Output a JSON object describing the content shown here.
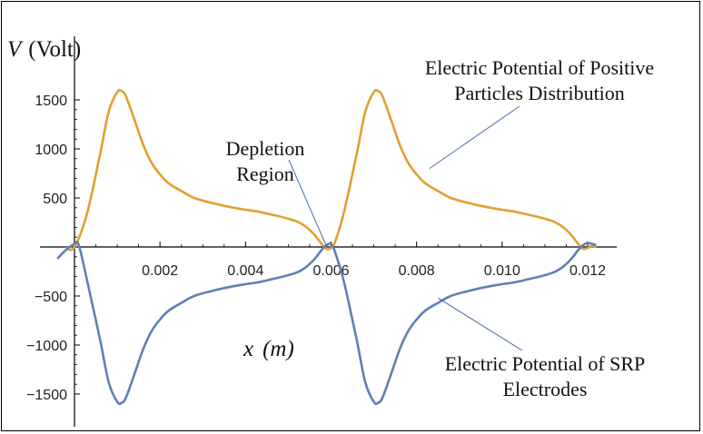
{
  "chart_data": {
    "type": "line",
    "ylabel_symbol": "V",
    "ylabel_unit": "(Volt)",
    "xlabel_symbol": "x",
    "xlabel_unit": "(m)",
    "xlim": [
      -0.0004,
      0.0125
    ],
    "ylim": [
      -1750,
      1750
    ],
    "xticks": [
      {
        "value": 0.002,
        "label": "0.002"
      },
      {
        "value": 0.004,
        "label": "0.004"
      },
      {
        "value": 0.006,
        "label": "0.006"
      },
      {
        "value": 0.008,
        "label": "0.008"
      },
      {
        "value": 0.01,
        "label": "0.010"
      },
      {
        "value": 0.012,
        "label": "0.012"
      }
    ],
    "yticks": [
      {
        "value": 1500,
        "label": "1500"
      },
      {
        "value": 1000,
        "label": "1000"
      },
      {
        "value": 500,
        "label": "500"
      },
      {
        "value": -500,
        "label": "−500"
      },
      {
        "value": -1000,
        "label": "−1000"
      },
      {
        "value": -1500,
        "label": "−1500"
      }
    ],
    "grid": false,
    "series": [
      {
        "id": "positive",
        "color": "#E0A030",
        "points": [
          [
            -0.0002,
            -10
          ],
          [
            0,
            0
          ],
          [
            0.0003,
            350
          ],
          [
            0.0006,
            950
          ],
          [
            0.0008,
            1380
          ],
          [
            0.001,
            1580
          ],
          [
            0.0011,
            1590
          ],
          [
            0.0012,
            1540
          ],
          [
            0.0014,
            1300
          ],
          [
            0.0016,
            1050
          ],
          [
            0.0018,
            860
          ],
          [
            0.002,
            740
          ],
          [
            0.0022,
            650
          ],
          [
            0.0025,
            570
          ],
          [
            0.0028,
            500
          ],
          [
            0.0032,
            450
          ],
          [
            0.0036,
            410
          ],
          [
            0.004,
            380
          ],
          [
            0.0043,
            360
          ],
          [
            0.0046,
            330
          ],
          [
            0.0049,
            300
          ],
          [
            0.0052,
            260
          ],
          [
            0.0054,
            210
          ],
          [
            0.0056,
            130
          ],
          [
            0.0058,
            20
          ],
          [
            0.0059,
            -20
          ],
          [
            0.006,
            -10
          ],
          [
            0.0061,
            60
          ],
          [
            0.0063,
            350
          ],
          [
            0.0066,
            950
          ],
          [
            0.0068,
            1380
          ],
          [
            0.007,
            1580
          ],
          [
            0.0071,
            1590
          ],
          [
            0.0072,
            1540
          ],
          [
            0.0074,
            1300
          ],
          [
            0.0076,
            1050
          ],
          [
            0.0078,
            860
          ],
          [
            0.008,
            740
          ],
          [
            0.0082,
            650
          ],
          [
            0.0085,
            570
          ],
          [
            0.0088,
            500
          ],
          [
            0.0092,
            450
          ],
          [
            0.0096,
            410
          ],
          [
            0.01,
            380
          ],
          [
            0.0103,
            360
          ],
          [
            0.0106,
            330
          ],
          [
            0.0109,
            300
          ],
          [
            0.0112,
            260
          ],
          [
            0.0114,
            210
          ],
          [
            0.0116,
            130
          ],
          [
            0.0118,
            20
          ],
          [
            0.0119,
            -20
          ],
          [
            0.012,
            -10
          ],
          [
            0.0121,
            10
          ],
          [
            0.0122,
            0
          ]
        ]
      },
      {
        "id": "srp",
        "color": "#5E81B5",
        "points": [
          [
            -0.0004,
            -120
          ],
          [
            -0.0002,
            -30
          ],
          [
            0,
            30
          ],
          [
            0.0001,
            20
          ],
          [
            0.0003,
            -350
          ],
          [
            0.0006,
            -950
          ],
          [
            0.0008,
            -1380
          ],
          [
            0.001,
            -1580
          ],
          [
            0.0011,
            -1590
          ],
          [
            0.0012,
            -1540
          ],
          [
            0.0014,
            -1300
          ],
          [
            0.0016,
            -1050
          ],
          [
            0.0018,
            -860
          ],
          [
            0.002,
            -740
          ],
          [
            0.0022,
            -650
          ],
          [
            0.0025,
            -570
          ],
          [
            0.0028,
            -500
          ],
          [
            0.0032,
            -450
          ],
          [
            0.0036,
            -410
          ],
          [
            0.004,
            -380
          ],
          [
            0.0043,
            -360
          ],
          [
            0.0046,
            -330
          ],
          [
            0.0049,
            -300
          ],
          [
            0.0052,
            -260
          ],
          [
            0.0054,
            -210
          ],
          [
            0.0056,
            -130
          ],
          [
            0.0058,
            -20
          ],
          [
            0.0059,
            20
          ],
          [
            0.006,
            30
          ],
          [
            0.0061,
            -60
          ],
          [
            0.0063,
            -350
          ],
          [
            0.0066,
            -950
          ],
          [
            0.0068,
            -1380
          ],
          [
            0.007,
            -1580
          ],
          [
            0.0071,
            -1590
          ],
          [
            0.0072,
            -1540
          ],
          [
            0.0074,
            -1300
          ],
          [
            0.0076,
            -1050
          ],
          [
            0.0078,
            -860
          ],
          [
            0.008,
            -740
          ],
          [
            0.0082,
            -650
          ],
          [
            0.0085,
            -570
          ],
          [
            0.0088,
            -500
          ],
          [
            0.0092,
            -450
          ],
          [
            0.0096,
            -410
          ],
          [
            0.01,
            -380
          ],
          [
            0.0103,
            -360
          ],
          [
            0.0106,
            -330
          ],
          [
            0.0109,
            -300
          ],
          [
            0.0112,
            -260
          ],
          [
            0.0114,
            -210
          ],
          [
            0.0116,
            -130
          ],
          [
            0.0118,
            -20
          ],
          [
            0.0119,
            20
          ],
          [
            0.012,
            40
          ],
          [
            0.0122,
            20
          ]
        ]
      }
    ],
    "annotations": [
      {
        "id": "depletion",
        "lines": [
          "Depletion",
          "Region"
        ],
        "pointer_to": [
          0.0059,
          0
        ]
      },
      {
        "id": "positive-label",
        "lines": [
          "Electric Potential of Positive",
          "Particles Distribution"
        ],
        "pointer_to": [
          0.0083,
          800
        ]
      },
      {
        "id": "srp-label",
        "lines": [
          "Electric Potential of SRP",
          "Electrodes"
        ],
        "pointer_to": [
          0.0085,
          -520
        ]
      }
    ]
  }
}
